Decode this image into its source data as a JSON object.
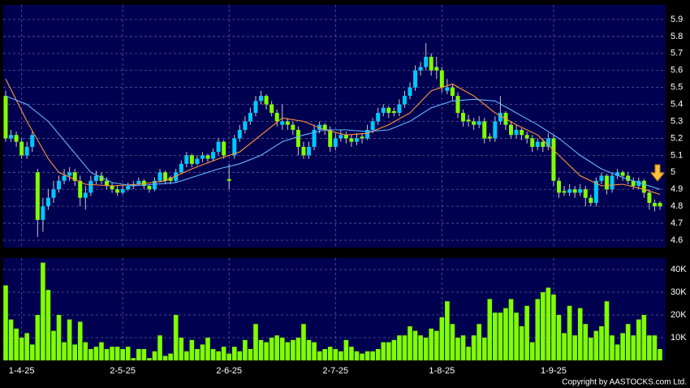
{
  "chart_data": [
    {
      "type": "candlestick",
      "up_color": "#00c8ff",
      "down_color": "#80ff00",
      "ylim": [
        4.557,
        5.986
      ],
      "yticks": [
        4.6,
        4.7,
        4.8,
        4.9,
        5,
        5.1,
        5.2,
        5.3,
        5.4,
        5.5,
        5.6,
        5.7,
        5.8,
        5.9
      ],
      "grid": true,
      "ohlc": [
        [
          5.45,
          5.48,
          5.18,
          5.2
        ],
        [
          5.2,
          5.25,
          5.18,
          5.22
        ],
        [
          5.22,
          5.24,
          5.15,
          5.18
        ],
        [
          5.18,
          5.2,
          5.08,
          5.1
        ],
        [
          5.1,
          5.18,
          5.08,
          5.15
        ],
        [
          5.15,
          5.24,
          5.12,
          5.22
        ],
        [
          5.0,
          5.02,
          4.62,
          4.72
        ],
        [
          4.72,
          4.85,
          4.65,
          4.8
        ],
        [
          4.8,
          4.9,
          4.78,
          4.85
        ],
        [
          4.85,
          4.95,
          4.82,
          4.9
        ],
        [
          4.9,
          4.98,
          4.88,
          4.95
        ],
        [
          4.95,
          5.02,
          4.93,
          4.98
        ],
        [
          4.98,
          5.03,
          4.95,
          5.0
        ],
        [
          5.0,
          5.02,
          4.92,
          4.95
        ],
        [
          4.95,
          4.98,
          4.8,
          4.85
        ],
        [
          4.85,
          4.92,
          4.78,
          4.88
        ],
        [
          4.88,
          4.98,
          4.86,
          4.95
        ],
        [
          4.95,
          5.01,
          4.93,
          4.98
        ],
        [
          4.98,
          5.0,
          4.93,
          4.95
        ],
        [
          4.95,
          4.97,
          4.9,
          4.92
        ],
        [
          4.92,
          4.94,
          4.88,
          4.9
        ],
        [
          4.9,
          4.92,
          4.86,
          4.88
        ],
        [
          4.88,
          4.92,
          4.87,
          4.9
        ],
        [
          4.9,
          4.94,
          4.89,
          4.92
        ],
        [
          4.92,
          4.95,
          4.9,
          4.93
        ],
        [
          4.93,
          4.97,
          4.92,
          4.95
        ],
        [
          4.95,
          4.96,
          4.9,
          4.92
        ],
        [
          4.92,
          4.93,
          4.88,
          4.9
        ],
        [
          4.9,
          4.97,
          4.89,
          4.95
        ],
        [
          4.95,
          5.02,
          4.94,
          5.0
        ],
        [
          5.0,
          5.01,
          4.93,
          4.95
        ],
        [
          4.97,
          4.98,
          4.93,
          4.95
        ],
        [
          4.95,
          5.02,
          4.94,
          5.0
        ],
        [
          5.0,
          5.07,
          4.99,
          5.05
        ],
        [
          5.05,
          5.12,
          5.03,
          5.1
        ],
        [
          5.1,
          5.11,
          5.03,
          5.05
        ],
        [
          5.05,
          5.1,
          5.04,
          5.08
        ],
        [
          5.08,
          5.12,
          5.06,
          5.1
        ],
        [
          5.1,
          5.11,
          5.06,
          5.08
        ],
        [
          5.08,
          5.14,
          5.07,
          5.12
        ],
        [
          5.12,
          5.2,
          5.1,
          5.18
        ],
        [
          5.18,
          5.19,
          5.08,
          5.1
        ],
        [
          4.96,
          5.05,
          4.9,
          4.95
        ],
        [
          5.1,
          5.22,
          5.08,
          5.2
        ],
        [
          5.2,
          5.28,
          5.18,
          5.25
        ],
        [
          5.25,
          5.33,
          5.23,
          5.3
        ],
        [
          5.3,
          5.38,
          5.28,
          5.35
        ],
        [
          5.35,
          5.45,
          5.33,
          5.42
        ],
        [
          5.42,
          5.48,
          5.4,
          5.45
        ],
        [
          5.45,
          5.46,
          5.37,
          5.4
        ],
        [
          5.4,
          5.42,
          5.33,
          5.35
        ],
        [
          5.35,
          5.37,
          5.27,
          5.3
        ],
        [
          5.28,
          5.4,
          5.25,
          5.3
        ],
        [
          5.3,
          5.32,
          5.25,
          5.28
        ],
        [
          5.28,
          5.3,
          5.22,
          5.25
        ],
        [
          5.25,
          5.27,
          5.1,
          5.15
        ],
        [
          5.15,
          5.18,
          5.08,
          5.1
        ],
        [
          5.1,
          5.18,
          5.08,
          5.15
        ],
        [
          5.15,
          5.28,
          5.13,
          5.25
        ],
        [
          5.25,
          5.3,
          5.23,
          5.28
        ],
        [
          5.28,
          5.29,
          5.22,
          5.25
        ],
        [
          5.25,
          5.27,
          5.12,
          5.15
        ],
        [
          5.15,
          5.23,
          5.13,
          5.2
        ],
        [
          5.2,
          5.25,
          5.18,
          5.22
        ],
        [
          5.22,
          5.24,
          5.17,
          5.2
        ],
        [
          5.2,
          5.22,
          5.15,
          5.18
        ],
        [
          5.18,
          5.23,
          5.16,
          5.2
        ],
        [
          5.21,
          5.23,
          5.17,
          5.2
        ],
        [
          5.2,
          5.28,
          5.19,
          5.25
        ],
        [
          5.25,
          5.32,
          5.23,
          5.3
        ],
        [
          5.3,
          5.38,
          5.28,
          5.35
        ],
        [
          5.35,
          5.4,
          5.33,
          5.38
        ],
        [
          5.38,
          5.39,
          5.32,
          5.35
        ],
        [
          5.36,
          5.38,
          5.33,
          5.35
        ],
        [
          5.35,
          5.43,
          5.33,
          5.4
        ],
        [
          5.4,
          5.48,
          5.38,
          5.45
        ],
        [
          5.45,
          5.53,
          5.43,
          5.5
        ],
        [
          5.5,
          5.63,
          5.48,
          5.6
        ],
        [
          5.6,
          5.65,
          5.57,
          5.62
        ],
        [
          5.62,
          5.76,
          5.6,
          5.68
        ],
        [
          5.68,
          5.7,
          5.57,
          5.6
        ],
        [
          5.62,
          5.68,
          5.55,
          5.6
        ],
        [
          5.6,
          5.62,
          5.47,
          5.5
        ],
        [
          5.48,
          5.55,
          5.46,
          5.5
        ],
        [
          5.5,
          5.52,
          5.42,
          5.45
        ],
        [
          5.45,
          5.47,
          5.32,
          5.35
        ],
        [
          5.35,
          5.37,
          5.27,
          5.3
        ],
        [
          5.31,
          5.34,
          5.27,
          5.3
        ],
        [
          5.3,
          5.32,
          5.25,
          5.28
        ],
        [
          5.28,
          5.33,
          5.26,
          5.3
        ],
        [
          5.3,
          5.32,
          5.17,
          5.2
        ],
        [
          5.21,
          5.23,
          5.18,
          5.2
        ],
        [
          5.2,
          5.33,
          5.18,
          5.3
        ],
        [
          5.3,
          5.45,
          5.28,
          5.35
        ],
        [
          5.35,
          5.36,
          5.25,
          5.28
        ],
        [
          5.28,
          5.3,
          5.2,
          5.22
        ],
        [
          5.22,
          5.28,
          5.2,
          5.25
        ],
        [
          5.25,
          5.26,
          5.19,
          5.22
        ],
        [
          5.22,
          5.24,
          5.17,
          5.2
        ],
        [
          5.2,
          5.22,
          5.12,
          5.15
        ],
        [
          5.15,
          5.2,
          5.13,
          5.18
        ],
        [
          5.18,
          5.2,
          5.12,
          5.15
        ],
        [
          5.15,
          5.23,
          5.13,
          5.2
        ],
        [
          5.2,
          5.22,
          4.92,
          4.95
        ],
        [
          4.95,
          4.97,
          4.85,
          4.88
        ],
        [
          4.89,
          4.92,
          4.86,
          4.88
        ],
        [
          4.88,
          4.93,
          4.86,
          4.9
        ],
        [
          4.9,
          4.92,
          4.85,
          4.88
        ],
        [
          4.88,
          4.93,
          4.86,
          4.9
        ],
        [
          4.9,
          4.92,
          4.8,
          4.85
        ],
        [
          4.85,
          4.87,
          4.8,
          4.82
        ],
        [
          4.82,
          4.97,
          4.8,
          4.95
        ],
        [
          4.95,
          5.0,
          4.93,
          4.98
        ],
        [
          4.98,
          4.99,
          4.87,
          4.9
        ],
        [
          4.9,
          5.0,
          4.88,
          4.98
        ],
        [
          4.98,
          5.02,
          4.96,
          5.0
        ],
        [
          5.0,
          5.01,
          4.95,
          4.98
        ],
        [
          4.98,
          5.0,
          4.93,
          4.95
        ],
        [
          4.95,
          4.97,
          4.9,
          4.92
        ],
        [
          4.92,
          4.97,
          4.9,
          4.95
        ],
        [
          4.95,
          4.96,
          4.85,
          4.88
        ],
        [
          4.88,
          4.9,
          4.78,
          4.82
        ],
        [
          4.82,
          4.84,
          4.77,
          4.8
        ],
        [
          4.82,
          4.83,
          4.78,
          4.8
        ]
      ],
      "lines": [
        {
          "color": "#ff9933",
          "x": [
            0,
            4,
            8,
            10,
            15,
            20,
            25,
            30,
            35,
            40,
            44,
            48,
            52,
            56,
            60,
            64,
            68,
            72,
            76,
            80,
            84,
            88,
            92,
            96,
            100,
            104,
            108,
            112,
            116,
            120,
            123
          ],
          "values": [
            5.55,
            5.3,
            5.08,
            5.0,
            4.93,
            4.92,
            4.93,
            4.95,
            5.02,
            5.08,
            5.12,
            5.22,
            5.32,
            5.3,
            5.25,
            5.22,
            5.23,
            5.28,
            5.35,
            5.48,
            5.52,
            5.45,
            5.35,
            5.28,
            5.22,
            5.1,
            4.98,
            4.92,
            4.93,
            4.9,
            4.87
          ]
        },
        {
          "color": "#66b3ff",
          "x": [
            0,
            4,
            8,
            12,
            16,
            20,
            24,
            28,
            32,
            36,
            40,
            44,
            48,
            52,
            56,
            60,
            64,
            68,
            72,
            76,
            80,
            84,
            88,
            92,
            96,
            100,
            104,
            108,
            112,
            116,
            120,
            123
          ],
          "values": [
            5.45,
            5.4,
            5.3,
            5.15,
            5.0,
            4.94,
            4.92,
            4.93,
            4.94,
            4.98,
            5.02,
            5.05,
            5.1,
            5.18,
            5.22,
            5.25,
            5.25,
            5.24,
            5.25,
            5.3,
            5.38,
            5.42,
            5.43,
            5.42,
            5.35,
            5.28,
            5.2,
            5.1,
            5.02,
            4.97,
            4.93,
            4.9
          ]
        }
      ]
    },
    {
      "type": "bar",
      "color": "#80ff00",
      "ylim": [
        0,
        45000
      ],
      "yticks": [
        {
          "value": 10000,
          "label": "10K"
        },
        {
          "value": 20000,
          "label": "20K"
        },
        {
          "value": 30000,
          "label": "30K"
        },
        {
          "value": 40000,
          "label": "40K"
        }
      ],
      "grid": true,
      "categories": [
        null,
        null,
        null,
        "1-4-25",
        null,
        null,
        null,
        null,
        null,
        null,
        null,
        null,
        null,
        null,
        null,
        null,
        null,
        null,
        null,
        null,
        null,
        null,
        "2-5-25",
        null,
        null,
        null,
        null,
        null,
        null,
        null,
        null,
        null,
        null,
        null,
        null,
        null,
        null,
        null,
        null,
        null,
        null,
        null,
        "2-6-25",
        null,
        null,
        null,
        null,
        null,
        null,
        null,
        null,
        null,
        null,
        null,
        null,
        null,
        null,
        null,
        null,
        null,
        null,
        null,
        "2-7-25",
        null,
        null,
        null,
        null,
        null,
        null,
        null,
        null,
        null,
        null,
        null,
        null,
        null,
        null,
        null,
        null,
        null,
        null,
        null,
        "1-8-25",
        null,
        null,
        null,
        null,
        null,
        null,
        null,
        null,
        null,
        null,
        null,
        null,
        null,
        null,
        null,
        null,
        null,
        null,
        null,
        null,
        "1-9-25",
        null,
        null,
        null,
        null,
        null,
        null,
        null,
        null,
        null,
        null,
        null,
        null,
        null,
        null,
        null,
        null,
        null,
        null,
        null,
        null
      ],
      "values": [
        33000,
        18000,
        14000,
        10000,
        12000,
        7000,
        20000,
        43000,
        31000,
        13000,
        20000,
        8000,
        18000,
        7000,
        17000,
        8000,
        5000,
        6000,
        8000,
        5000,
        6000,
        6000,
        5000,
        6000,
        1000,
        5000,
        5000,
        1000,
        4000,
        11000,
        2000,
        3000,
        20000,
        10000,
        4000,
        9000,
        5000,
        7000,
        10000,
        5000,
        4000,
        6000,
        3000,
        6000,
        4000,
        9000,
        5000,
        16000,
        9000,
        8000,
        10000,
        11000,
        10000,
        8000,
        9000,
        10000,
        16000,
        9000,
        8000,
        4000,
        5000,
        6000,
        5000,
        4000,
        9000,
        6000,
        4000,
        3000,
        4000,
        4000,
        5000,
        8000,
        8000,
        9000,
        11000,
        11000,
        15000,
        13000,
        11000,
        10000,
        14000,
        13000,
        19000,
        26000,
        16000,
        10000,
        11000,
        6000,
        11000,
        16000,
        10000,
        27000,
        21000,
        21000,
        23000,
        27000,
        21000,
        15000,
        24000,
        8000,
        27000,
        30000,
        32000,
        29000,
        20000,
        12000,
        24000,
        11000,
        23000,
        16000,
        10000,
        13000,
        15000,
        26000,
        11000,
        7000,
        12000,
        16000,
        11000,
        18000,
        20000,
        11000,
        11000,
        5000
      ]
    }
  ],
  "copyright": "Copyright by AASTOCKS.com Ltd."
}
